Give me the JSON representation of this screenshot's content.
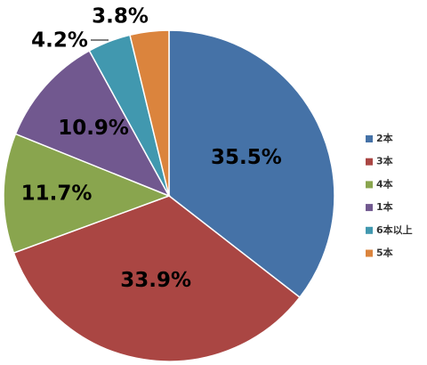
{
  "chart_data": {
    "type": "pie",
    "slices": [
      {
        "label": "2本",
        "value": 35.5,
        "display": "35.5%",
        "color": "#4572A7"
      },
      {
        "label": "3本",
        "value": 33.9,
        "display": "33.9%",
        "color": "#AA4643"
      },
      {
        "label": "4本",
        "value": 11.7,
        "display": "11.7%",
        "color": "#89A54E"
      },
      {
        "label": "1本",
        "value": 10.9,
        "display": "10.9%",
        "color": "#71588F"
      },
      {
        "label": "6本以上",
        "value": 4.2,
        "display": "4.2%",
        "color": "#4198AF"
      },
      {
        "label": "5本",
        "value": 3.8,
        "display": "3.8%",
        "color": "#DB843D"
      }
    ],
    "legend": "right",
    "start": "top",
    "direction": "clockwise"
  }
}
